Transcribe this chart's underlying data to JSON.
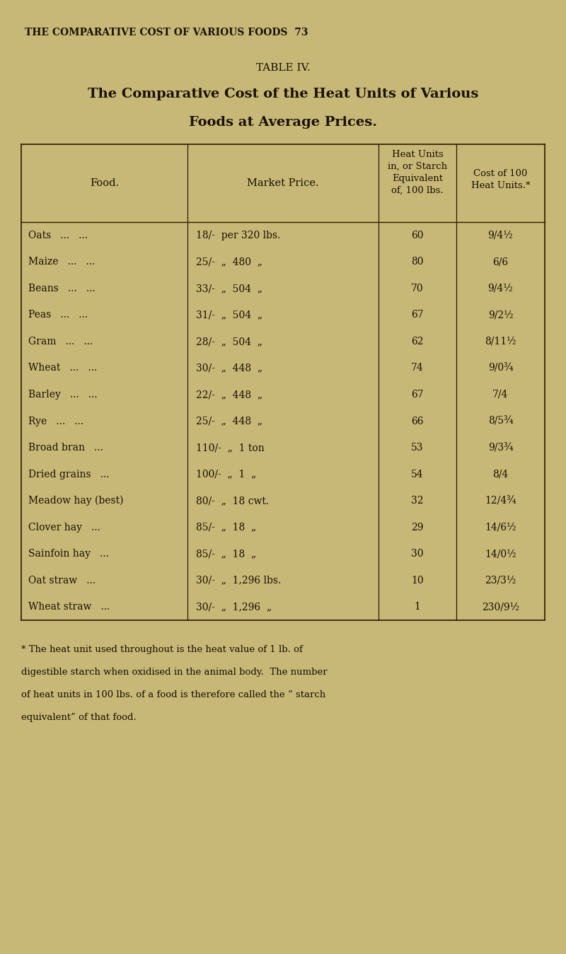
{
  "page_header": "THE COMPARATIVE COST OF VARIOUS FOODS  73",
  "table_title_line1": "TABLE IV.",
  "table_title_line2": "The Comparative Cost of the Heat Units of Various",
  "table_title_line3": "Foods at Average Prices.",
  "col_headers": [
    "Food.",
    "Market Price.",
    "Heat Units\nin, or Starch\nEquivalent\nof, 100 lbs.",
    "Cost of 100\nHeat Units.*"
  ],
  "rows": [
    [
      "Oats   ...   ...",
      "18/-  per 320 lbs.",
      "60",
      "9/4½"
    ],
    [
      "Maize   ...   ...",
      "25/-  „  480  „",
      "80",
      "6/6"
    ],
    [
      "Beans   ...   ...",
      "33/-  „  504  „",
      "70",
      "9/4½"
    ],
    [
      "Peas   ...   ...",
      "31/-  „  504  „",
      "67",
      "9/2½"
    ],
    [
      "Gram   ...   ...",
      "28/-  „  504  „",
      "62",
      "8/11½"
    ],
    [
      "Wheat   ...   ...",
      "30/-  „  448  „",
      "74",
      "9/0¾"
    ],
    [
      "Barley   ...   ...",
      "22/-  „  448  „",
      "67",
      "7/4"
    ],
    [
      "Rye   ...   ...",
      "25/-  „  448  „",
      "66",
      "8/5¾"
    ],
    [
      "Broad bran   ...",
      "110/-  „  1 ton",
      "53",
      "9/3¾"
    ],
    [
      "Dried grains   ...",
      "100/-  „  1  „",
      "54",
      "8/4"
    ],
    [
      "Meadow hay (best)",
      "80/-  „  18 cwt.",
      "32",
      "12/4¾"
    ],
    [
      "Clover hay   ...",
      "85/-  „  18  „",
      "29",
      "14/6½"
    ],
    [
      "Sainfoin hay   ...",
      "85/-  „  18  „",
      "30",
      "14/0½"
    ],
    [
      "Oat straw   ...",
      "30/-  „  1,296 lbs.",
      "10",
      "23/3½"
    ],
    [
      "Wheat straw   ...",
      "30/-  „  1,296  „",
      "1",
      "230/9½"
    ]
  ],
  "footnote_lines": [
    "* The heat unit used throughout is the heat value of 1 lb. of",
    "digestible starch when oxidised in the animal body.  The number",
    "of heat units in 100 lbs. of a food is therefore called the “ starch",
    "equivalent” of that food."
  ],
  "bg_color": "#c8b878",
  "text_color": "#1a1000",
  "table_line_color": "#2a1a00"
}
